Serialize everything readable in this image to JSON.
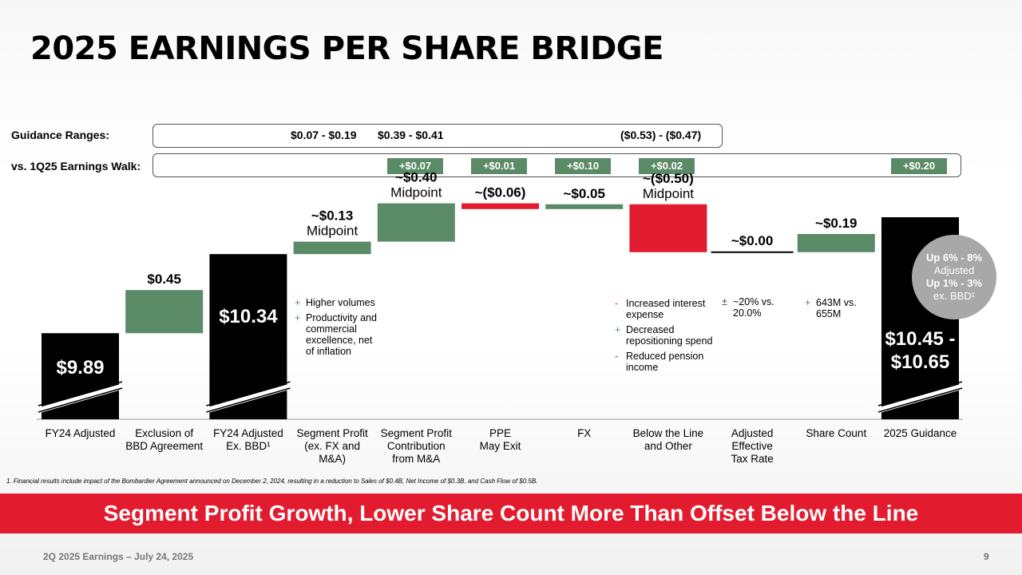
{
  "title": "2025 EARNINGS PER SHARE BRIDGE",
  "guidance": {
    "label": "Guidance Ranges:",
    "range_1": "$0.07 - $0.19",
    "range_2": "$0.39 - $0.41",
    "range_3": "($0.53) - ($0.47)"
  },
  "walk": {
    "label": "vs. 1Q25 Earnings Walk:",
    "items": [
      "+$0.07",
      "+$0.01",
      "+$0.10",
      "+$0.02",
      "+$0.20"
    ]
  },
  "chart_data": {
    "type": "waterfall",
    "categories": [
      "FY24 Adjusted",
      "Exclusion of BBD Agreement",
      "FY24 Adjusted Ex. BBD¹",
      "Segment Profit (ex. FX and M&A)",
      "Segment Profit Contribution from M&A",
      "PPE May Exit",
      "FX",
      "Below the Line and Other",
      "Adjusted Effective Tax Rate",
      "Share Count",
      "2025 Guidance"
    ],
    "category_lines": [
      [
        "FY24 Adjusted"
      ],
      [
        "Exclusion of",
        "BBD Agreement"
      ],
      [
        "FY24 Adjusted",
        "Ex. BBD¹"
      ],
      [
        "Segment Profit",
        "(ex. FX and",
        "M&A)"
      ],
      [
        "Segment Profit",
        "Contribution",
        "from M&A"
      ],
      [
        "PPE",
        "May Exit"
      ],
      [
        "FX"
      ],
      [
        "Below the Line",
        "and Other"
      ],
      [
        "Adjusted",
        "Effective",
        "Tax Rate"
      ],
      [
        "Share Count"
      ],
      [
        "2025 Guidance"
      ]
    ],
    "values": [
      9.89,
      0.45,
      10.34,
      0.13,
      0.4,
      -0.06,
      0.05,
      -0.5,
      0.0,
      0.19,
      10.55
    ],
    "kinds": [
      "total",
      "increase",
      "total",
      "increase",
      "increase",
      "decrease",
      "increase",
      "decrease",
      "neutral",
      "increase",
      "total"
    ],
    "data_labels": [
      [
        "$9.89"
      ],
      [
        "$0.45"
      ],
      [
        "$10.34"
      ],
      [
        "~$0.13",
        "Midpoint"
      ],
      [
        "~$0.40",
        "Midpoint"
      ],
      [
        "~($0.06)"
      ],
      [
        "~$0.05"
      ],
      [
        "~($0.50)",
        "Midpoint"
      ],
      [
        "~$0.00"
      ],
      [
        "~$0.19"
      ],
      [
        "$10.45 -",
        "$10.65"
      ]
    ],
    "colors": {
      "total": "#000000",
      "increase": "#5b8a66",
      "decrease": "#e21c2e",
      "neutral": "#000000"
    }
  },
  "notes": {
    "segment_profit": [
      {
        "sym": "+",
        "text": "Higher volumes"
      },
      {
        "sym": "+",
        "text": "Productivity and commercial excellence, net of inflation"
      }
    ],
    "below_line": [
      {
        "sym": "-",
        "text": "Increased interest expense"
      },
      {
        "sym": "+",
        "text": "Decreased repositioning spend"
      },
      {
        "sym": "-",
        "text": "Reduced pension income"
      }
    ],
    "tax_rate": [
      {
        "sym": "±",
        "text": "~20% vs. 20.0%"
      }
    ],
    "share_count": [
      {
        "sym": "+",
        "text": "643M vs. 655M"
      }
    ]
  },
  "callout": {
    "line1": "Up 6% - 8%",
    "line2": "Adjusted",
    "line3": "Up 1% - 3%",
    "line4": "ex. BBD¹"
  },
  "footnote": "1. Financial results include impact of the Bombardier Agreement announced on December 2, 2024, resulting in a reduction to Sales of $0.4B, Net Income of $0.3B, and Cash Flow of $0.5B.",
  "banner": "Segment Profit Growth, Lower Share Count More Than Offset Below the Line",
  "footer": "2Q 2025 Earnings – July 24, 2025",
  "page_number": "9"
}
